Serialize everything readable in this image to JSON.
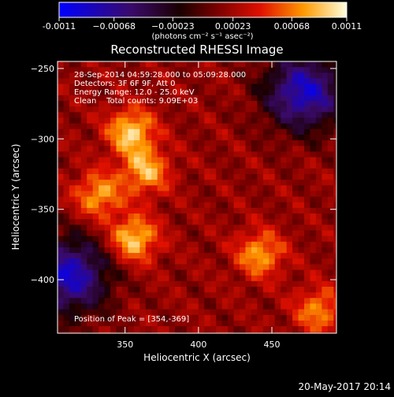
{
  "chart_data": {
    "type": "heatmap",
    "title": "Reconstructed RHESSI Image",
    "xlabel": "Heliocentric X (arcsec)",
    "ylabel": "Heliocentric Y (arcsec)",
    "xlim": [
      304,
      494
    ],
    "ylim": [
      -438,
      -245
    ],
    "x_ticks": [
      350,
      400,
      450
    ],
    "y_ticks": [
      -250,
      -300,
      -350,
      -400
    ],
    "colorbar": {
      "colormap": "red-temperature",
      "range": [
        -0.0011,
        0.0011
      ],
      "tick_values": [
        -0.0011,
        -0.00068,
        -0.00023,
        0.00023,
        0.00068,
        0.0011
      ],
      "tick_labels": [
        "-0.0011",
        "−0.00068",
        "−0.00023",
        "0.00023",
        "0.00068",
        "0.0011"
      ],
      "units": "(photons cm⁻² s⁻¹ asec⁻²)"
    },
    "annotations": [
      "28-Sep-2014 04:59:28.000 to 05:09:28.000",
      "Detectors: 3F 6F 9F, Att 0",
      "Energy Range: 12.0 - 25.0 keV",
      "Clean    Total counts: 9.09E+03"
    ],
    "peak_label": "Position of Peak = [354,-369]",
    "peak": {
      "x": 354,
      "y": -369
    },
    "bright_sources": [
      {
        "x": 352,
        "y": -293,
        "value": 0.0011
      },
      {
        "x": 362,
        "y": -321,
        "value": 0.00095
      },
      {
        "x": 354,
        "y": -369,
        "value": 0.0011
      },
      {
        "x": 330,
        "y": -338,
        "value": 0.0009
      },
      {
        "x": 440,
        "y": -380,
        "value": 0.0009
      },
      {
        "x": 480,
        "y": -420,
        "value": 0.0008
      }
    ],
    "dark_regions": [
      {
        "x": 470,
        "y": -265,
        "value": -0.0008
      },
      {
        "x": 310,
        "y": -395,
        "value": -0.0008
      }
    ]
  },
  "footer_date": "20-May-2017 20:14"
}
